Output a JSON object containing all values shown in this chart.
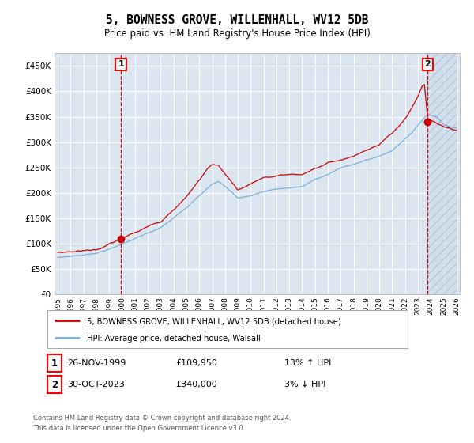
{
  "title": "5, BOWNESS GROVE, WILLENHALL, WV12 5DB",
  "subtitle": "Price paid vs. HM Land Registry's House Price Index (HPI)",
  "background_color": "#ffffff",
  "plot_bg_color": "#dce6f1",
  "grid_color": "#ffffff",
  "red_line_color": "#cc0000",
  "blue_line_color": "#7bafd4",
  "vline_color": "#cc0000",
  "hatch_bg_color": "#c8d8e8",
  "annotation1_date": "26-NOV-1999",
  "annotation1_price": "£109,950",
  "annotation1_hpi": "13% ↑ HPI",
  "annotation2_date": "30-OCT-2023",
  "annotation2_price": "£340,000",
  "annotation2_hpi": "3% ↓ HPI",
  "legend_label_red": "5, BOWNESS GROVE, WILLENHALL, WV12 5DB (detached house)",
  "legend_label_blue": "HPI: Average price, detached house, Walsall",
  "footer": "Contains HM Land Registry data © Crown copyright and database right 2024.\nThis data is licensed under the Open Government Licence v3.0.",
  "ylim": [
    0,
    475000
  ],
  "yticks": [
    0,
    50000,
    100000,
    150000,
    200000,
    250000,
    300000,
    350000,
    400000,
    450000
  ],
  "sale1_idx": 59,
  "sale1_value": 109950,
  "sale2_idx": 345,
  "sale2_value": 340000,
  "n_months": 373,
  "year_start": 1995,
  "tick_years": [
    1995,
    1996,
    1997,
    1998,
    1999,
    2000,
    2001,
    2002,
    2003,
    2004,
    2005,
    2006,
    2007,
    2008,
    2009,
    2010,
    2011,
    2012,
    2013,
    2014,
    2015,
    2016,
    2017,
    2018,
    2019,
    2020,
    2021,
    2022,
    2023,
    2024,
    2025,
    2026
  ]
}
